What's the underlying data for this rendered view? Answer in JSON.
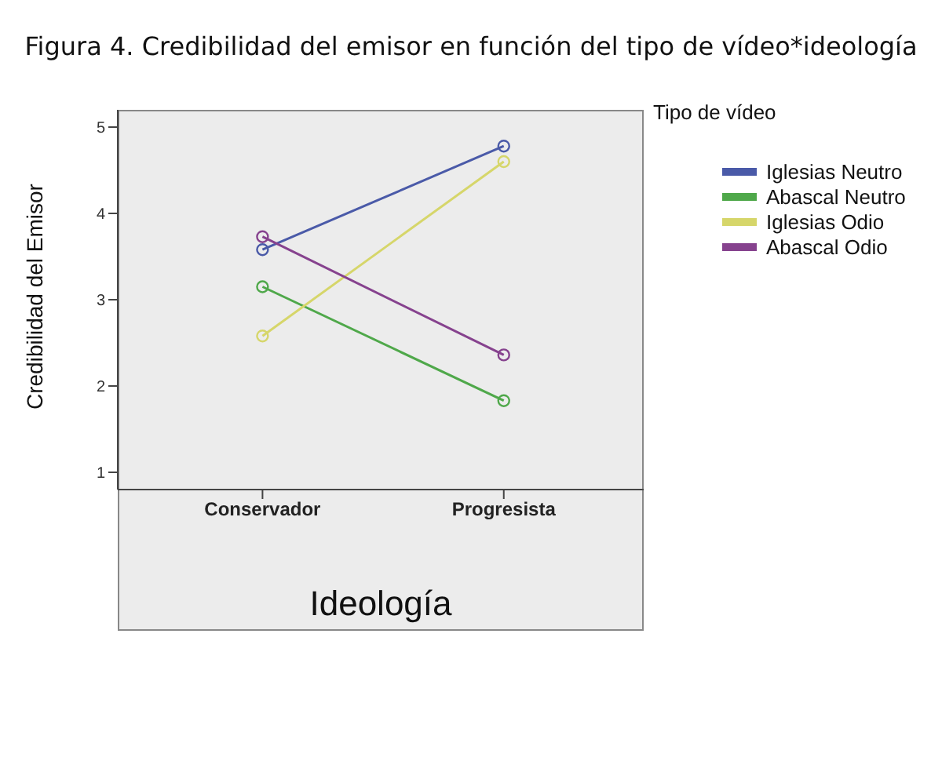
{
  "chart_data": {
    "type": "line",
    "title": "Figura 4. Credibilidad del emisor en función del tipo de vídeo*ideología",
    "xlabel": "Ideología",
    "ylabel": "Credibilidad del Emisor",
    "legend_title": "Tipo de vídeo",
    "categories": [
      "Conservador",
      "Progresista"
    ],
    "series": [
      {
        "name": "Iglesias Neutro",
        "color": "#4a5aa8",
        "values": [
          3.58,
          4.78
        ]
      },
      {
        "name": "Abascal Neutro",
        "color": "#4fa84a",
        "values": [
          3.15,
          1.83
        ]
      },
      {
        "name": "Iglesias Odio",
        "color": "#d6d66a",
        "values": [
          2.58,
          4.6
        ]
      },
      {
        "name": "Abascal Odio",
        "color": "#86428e",
        "values": [
          3.73,
          2.36
        ]
      }
    ],
    "ylim": [
      0.8,
      5.2
    ],
    "yticks": [
      1,
      2,
      3,
      4,
      5
    ],
    "grid": false,
    "legend": "right",
    "marker": "circle",
    "line_style": "solid"
  }
}
